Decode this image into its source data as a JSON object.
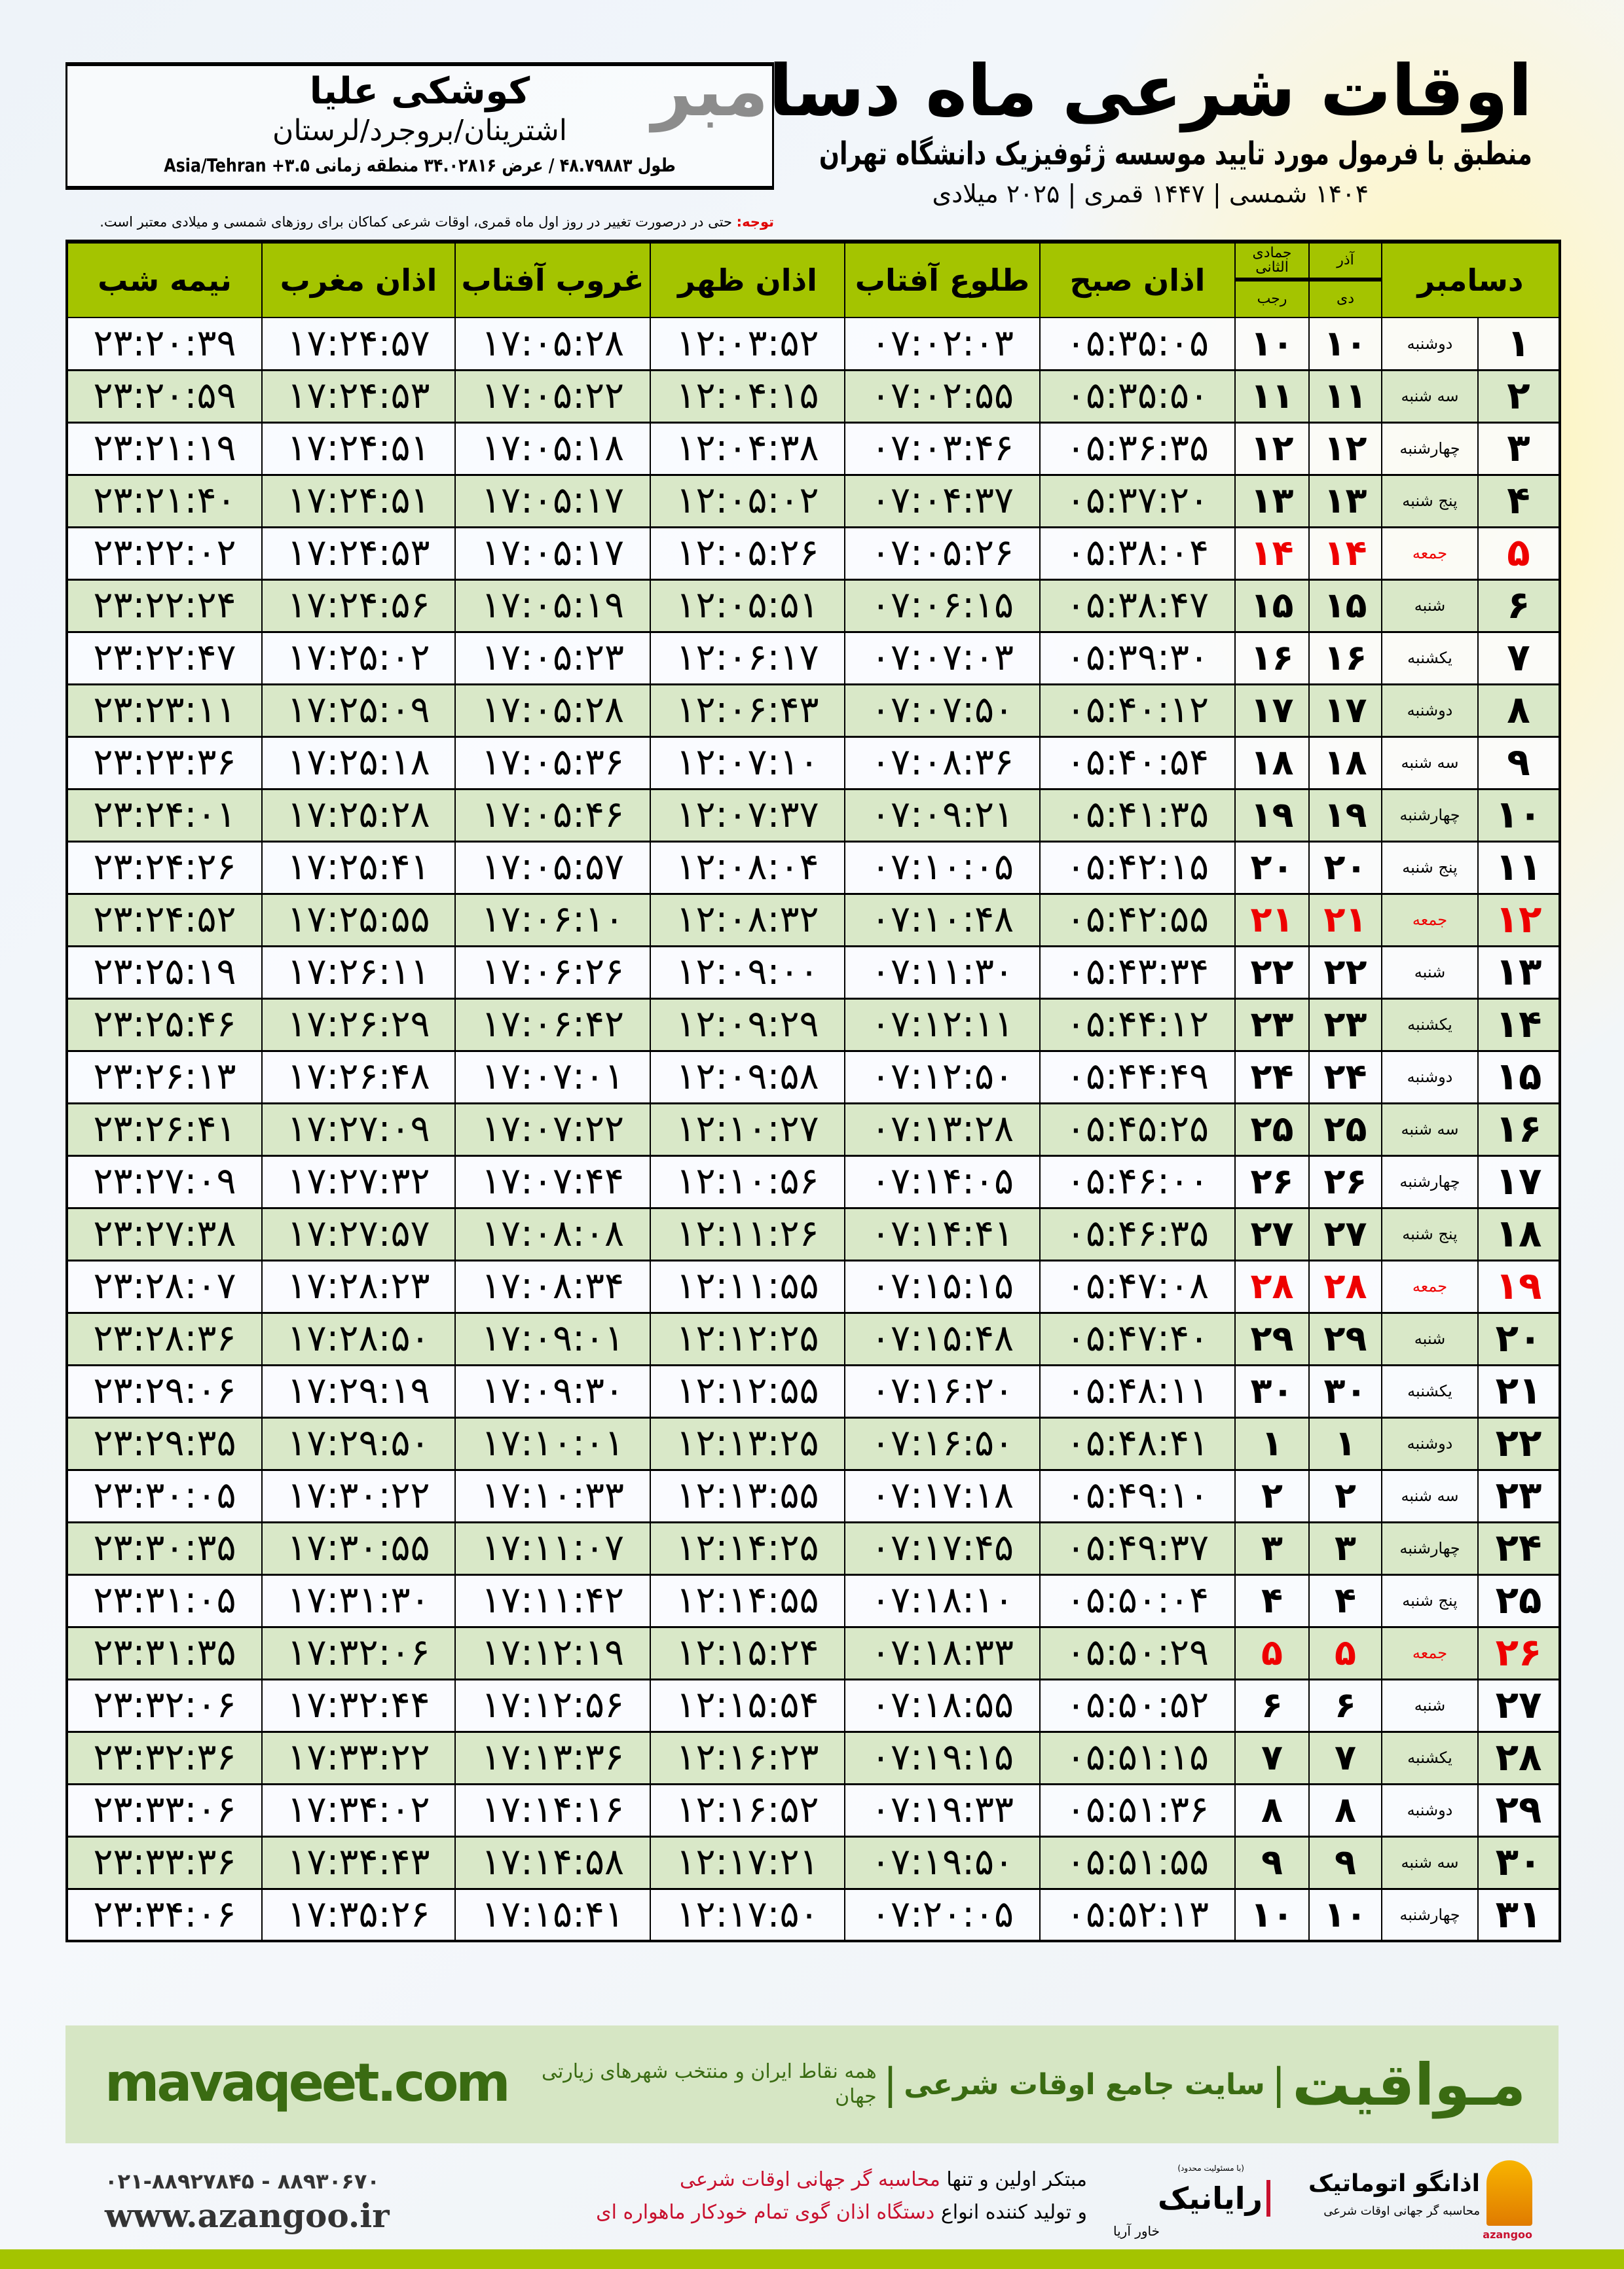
{
  "header": {
    "title": "اوقات شرعی ماه دسامبر",
    "subtitle": "منطبق با فرمول مورد تایید موسسه ژئوفیزیک دانشگاه تهران",
    "dates": "۱۴۰۴ شمسی | ۱۴۴۷ قمری | ۲۰۲۵ میلادی"
  },
  "location": {
    "name": "کوشکی علیا",
    "region": "اشترینان/بروجرد/لرستان",
    "coords": "طول ۴۸.۷۹۸۸۳ / عرض ۳۴.۰۲۸۱۶ منطقه زمانی ۳.۵+ Asia/Tehran"
  },
  "note": {
    "label": "توجه:",
    "text": " حتی در درصورت تغییر در روز اول ماه قمری، اوقات شرعی کماکان برای روزهای شمسی و میلادی معتبر است."
  },
  "table": {
    "headers": {
      "day": "دسامبر",
      "azar": "آذر",
      "dey": "دی",
      "jumada": "جمادی الثانی",
      "rajab": "رجب",
      "fajr": "اذان صبح",
      "sunrise": "طلوع آفتاب",
      "dhuhr": "اذان ظهر",
      "sunset": "غروب آفتاب",
      "maghrib": "اذان مغرب",
      "midnight": "نیمه شب"
    },
    "holiday_weekday": "جمعه",
    "holiday_color": "#ee0000",
    "header_color": "#a4c400",
    "rows": [
      [
        "۱",
        "دوشنبه",
        "۱۰",
        "۱۰",
        "۰۵:۳۵:۰۵",
        "۰۷:۰۲:۰۳",
        "۱۲:۰۳:۵۲",
        "۱۷:۰۵:۲۸",
        "۱۷:۲۴:۵۷",
        "۲۳:۲۰:۳۹"
      ],
      [
        "۲",
        "سه شنبه",
        "۱۱",
        "۱۱",
        "۰۵:۳۵:۵۰",
        "۰۷:۰۲:۵۵",
        "۱۲:۰۴:۱۵",
        "۱۷:۰۵:۲۲",
        "۱۷:۲۴:۵۳",
        "۲۳:۲۰:۵۹"
      ],
      [
        "۳",
        "چهارشنبه",
        "۱۲",
        "۱۲",
        "۰۵:۳۶:۳۵",
        "۰۷:۰۳:۴۶",
        "۱۲:۰۴:۳۸",
        "۱۷:۰۵:۱۸",
        "۱۷:۲۴:۵۱",
        "۲۳:۲۱:۱۹"
      ],
      [
        "۴",
        "پنج شنبه",
        "۱۳",
        "۱۳",
        "۰۵:۳۷:۲۰",
        "۰۷:۰۴:۳۷",
        "۱۲:۰۵:۰۲",
        "۱۷:۰۵:۱۷",
        "۱۷:۲۴:۵۱",
        "۲۳:۲۱:۴۰"
      ],
      [
        "۵",
        "جمعه",
        "۱۴",
        "۱۴",
        "۰۵:۳۸:۰۴",
        "۰۷:۰۵:۲۶",
        "۱۲:۰۵:۲۶",
        "۱۷:۰۵:۱۷",
        "۱۷:۲۴:۵۳",
        "۲۳:۲۲:۰۲"
      ],
      [
        "۶",
        "شنبه",
        "۱۵",
        "۱۵",
        "۰۵:۳۸:۴۷",
        "۰۷:۰۶:۱۵",
        "۱۲:۰۵:۵۱",
        "۱۷:۰۵:۱۹",
        "۱۷:۲۴:۵۶",
        "۲۳:۲۲:۲۴"
      ],
      [
        "۷",
        "یکشنبه",
        "۱۶",
        "۱۶",
        "۰۵:۳۹:۳۰",
        "۰۷:۰۷:۰۳",
        "۱۲:۰۶:۱۷",
        "۱۷:۰۵:۲۳",
        "۱۷:۲۵:۰۲",
        "۲۳:۲۲:۴۷"
      ],
      [
        "۸",
        "دوشنبه",
        "۱۷",
        "۱۷",
        "۰۵:۴۰:۱۲",
        "۰۷:۰۷:۵۰",
        "۱۲:۰۶:۴۳",
        "۱۷:۰۵:۲۸",
        "۱۷:۲۵:۰۹",
        "۲۳:۲۳:۱۱"
      ],
      [
        "۹",
        "سه شنبه",
        "۱۸",
        "۱۸",
        "۰۵:۴۰:۵۴",
        "۰۷:۰۸:۳۶",
        "۱۲:۰۷:۱۰",
        "۱۷:۰۵:۳۶",
        "۱۷:۲۵:۱۸",
        "۲۳:۲۳:۳۶"
      ],
      [
        "۱۰",
        "چهارشنبه",
        "۱۹",
        "۱۹",
        "۰۵:۴۱:۳۵",
        "۰۷:۰۹:۲۱",
        "۱۲:۰۷:۳۷",
        "۱۷:۰۵:۴۶",
        "۱۷:۲۵:۲۸",
        "۲۳:۲۴:۰۱"
      ],
      [
        "۱۱",
        "پنج شنبه",
        "۲۰",
        "۲۰",
        "۰۵:۴۲:۱۵",
        "۰۷:۱۰:۰۵",
        "۱۲:۰۸:۰۴",
        "۱۷:۰۵:۵۷",
        "۱۷:۲۵:۴۱",
        "۲۳:۲۴:۲۶"
      ],
      [
        "۱۲",
        "جمعه",
        "۲۱",
        "۲۱",
        "۰۵:۴۲:۵۵",
        "۰۷:۱۰:۴۸",
        "۱۲:۰۸:۳۲",
        "۱۷:۰۶:۱۰",
        "۱۷:۲۵:۵۵",
        "۲۳:۲۴:۵۲"
      ],
      [
        "۱۳",
        "شنبه",
        "۲۲",
        "۲۲",
        "۰۵:۴۳:۳۴",
        "۰۷:۱۱:۳۰",
        "۱۲:۰۹:۰۰",
        "۱۷:۰۶:۲۶",
        "۱۷:۲۶:۱۱",
        "۲۳:۲۵:۱۹"
      ],
      [
        "۱۴",
        "یکشنبه",
        "۲۳",
        "۲۳",
        "۰۵:۴۴:۱۲",
        "۰۷:۱۲:۱۱",
        "۱۲:۰۹:۲۹",
        "۱۷:۰۶:۴۲",
        "۱۷:۲۶:۲۹",
        "۲۳:۲۵:۴۶"
      ],
      [
        "۱۵",
        "دوشنبه",
        "۲۴",
        "۲۴",
        "۰۵:۴۴:۴۹",
        "۰۷:۱۲:۵۰",
        "۱۲:۰۹:۵۸",
        "۱۷:۰۷:۰۱",
        "۱۷:۲۶:۴۸",
        "۲۳:۲۶:۱۳"
      ],
      [
        "۱۶",
        "سه شنبه",
        "۲۵",
        "۲۵",
        "۰۵:۴۵:۲۵",
        "۰۷:۱۳:۲۸",
        "۱۲:۱۰:۲۷",
        "۱۷:۰۷:۲۲",
        "۱۷:۲۷:۰۹",
        "۲۳:۲۶:۴۱"
      ],
      [
        "۱۷",
        "چهارشنبه",
        "۲۶",
        "۲۶",
        "۰۵:۴۶:۰۰",
        "۰۷:۱۴:۰۵",
        "۱۲:۱۰:۵۶",
        "۱۷:۰۷:۴۴",
        "۱۷:۲۷:۳۲",
        "۲۳:۲۷:۰۹"
      ],
      [
        "۱۸",
        "پنج شنبه",
        "۲۷",
        "۲۷",
        "۰۵:۴۶:۳۵",
        "۰۷:۱۴:۴۱",
        "۱۲:۱۱:۲۶",
        "۱۷:۰۸:۰۸",
        "۱۷:۲۷:۵۷",
        "۲۳:۲۷:۳۸"
      ],
      [
        "۱۹",
        "جمعه",
        "۲۸",
        "۲۸",
        "۰۵:۴۷:۰۸",
        "۰۷:۱۵:۱۵",
        "۱۲:۱۱:۵۵",
        "۱۷:۰۸:۳۴",
        "۱۷:۲۸:۲۳",
        "۲۳:۲۸:۰۷"
      ],
      [
        "۲۰",
        "شنبه",
        "۲۹",
        "۲۹",
        "۰۵:۴۷:۴۰",
        "۰۷:۱۵:۴۸",
        "۱۲:۱۲:۲۵",
        "۱۷:۰۹:۰۱",
        "۱۷:۲۸:۵۰",
        "۲۳:۲۸:۳۶"
      ],
      [
        "۲۱",
        "یکشنبه",
        "۳۰",
        "۳۰",
        "۰۵:۴۸:۱۱",
        "۰۷:۱۶:۲۰",
        "۱۲:۱۲:۵۵",
        "۱۷:۰۹:۳۰",
        "۱۷:۲۹:۱۹",
        "۲۳:۲۹:۰۶"
      ],
      [
        "۲۲",
        "دوشنبه",
        "۱",
        "۱",
        "۰۵:۴۸:۴۱",
        "۰۷:۱۶:۵۰",
        "۱۲:۱۳:۲۵",
        "۱۷:۱۰:۰۱",
        "۱۷:۲۹:۵۰",
        "۲۳:۲۹:۳۵"
      ],
      [
        "۲۳",
        "سه شنبه",
        "۲",
        "۲",
        "۰۵:۴۹:۱۰",
        "۰۷:۱۷:۱۸",
        "۱۲:۱۳:۵۵",
        "۱۷:۱۰:۳۳",
        "۱۷:۳۰:۲۲",
        "۲۳:۳۰:۰۵"
      ],
      [
        "۲۴",
        "چهارشنبه",
        "۳",
        "۳",
        "۰۵:۴۹:۳۷",
        "۰۷:۱۷:۴۵",
        "۱۲:۱۴:۲۵",
        "۱۷:۱۱:۰۷",
        "۱۷:۳۰:۵۵",
        "۲۳:۳۰:۳۵"
      ],
      [
        "۲۵",
        "پنج شنبه",
        "۴",
        "۴",
        "۰۵:۵۰:۰۴",
        "۰۷:۱۸:۱۰",
        "۱۲:۱۴:۵۵",
        "۱۷:۱۱:۴۲",
        "۱۷:۳۱:۳۰",
        "۲۳:۳۱:۰۵"
      ],
      [
        "۲۶",
        "جمعه",
        "۵",
        "۵",
        "۰۵:۵۰:۲۹",
        "۰۷:۱۸:۳۳",
        "۱۲:۱۵:۲۴",
        "۱۷:۱۲:۱۹",
        "۱۷:۳۲:۰۶",
        "۲۳:۳۱:۳۵"
      ],
      [
        "۲۷",
        "شنبه",
        "۶",
        "۶",
        "۰۵:۵۰:۵۲",
        "۰۷:۱۸:۵۵",
        "۱۲:۱۵:۵۴",
        "۱۷:۱۲:۵۶",
        "۱۷:۳۲:۴۴",
        "۲۳:۳۲:۰۶"
      ],
      [
        "۲۸",
        "یکشنبه",
        "۷",
        "۷",
        "۰۵:۵۱:۱۵",
        "۰۷:۱۹:۱۵",
        "۱۲:۱۶:۲۳",
        "۱۷:۱۳:۳۶",
        "۱۷:۳۳:۲۲",
        "۲۳:۳۲:۳۶"
      ],
      [
        "۲۹",
        "دوشنبه",
        "۸",
        "۸",
        "۰۵:۵۱:۳۶",
        "۰۷:۱۹:۳۳",
        "۱۲:۱۶:۵۲",
        "۱۷:۱۴:۱۶",
        "۱۷:۳۴:۰۲",
        "۲۳:۳۳:۰۶"
      ],
      [
        "۳۰",
        "سه شنبه",
        "۹",
        "۹",
        "۰۵:۵۱:۵۵",
        "۰۷:۱۹:۵۰",
        "۱۲:۱۷:۲۱",
        "۱۷:۱۴:۵۸",
        "۱۷:۳۴:۴۳",
        "۲۳:۳۳:۳۶"
      ],
      [
        "۳۱",
        "چهارشنبه",
        "۱۰",
        "۱۰",
        "۰۵:۵۲:۱۳",
        "۰۷:۲۰:۰۵",
        "۱۲:۱۷:۵۰",
        "۱۷:۱۵:۴۱",
        "۱۷:۳۵:۲۶",
        "۲۳:۳۴:۰۶"
      ]
    ]
  },
  "footer": {
    "site": "mavaqeet.com",
    "brand": "مـواقیت",
    "brand_sub": "سایت جامع اوقات شرعی",
    "brand_tag": "همه نقاط ایران و منتخب شهرهای زیارتی جهان",
    "sep": "|",
    "brand_color": "#3a6b12"
  },
  "contact": {
    "phone": "۰۲۱-۸۸۹۲۷۸۴۵ - ۸۸۹۳۰۶۷۰",
    "url": "www.azangoo.ir"
  },
  "promo": {
    "l1a": "مبتکر اولین و تنها ",
    "l1b": "محاسبه گر جهانی اوقات شرعی",
    "l2a": "و تولید کننده انواع ",
    "l2b": "دستگاه اذان گوی تمام خودکار ماهواره ای"
  },
  "logos": {
    "raianik": "رایانیک",
    "raianik_sub": "خاور آریا",
    "raianik_note": "(با مسئولیت محدود)",
    "azangoo": "اذانگو اتوماتیک",
    "azangoo_sub": "محاسبه گر جهانی اوقات شرعی",
    "azangoo_latin": "azangoo"
  }
}
